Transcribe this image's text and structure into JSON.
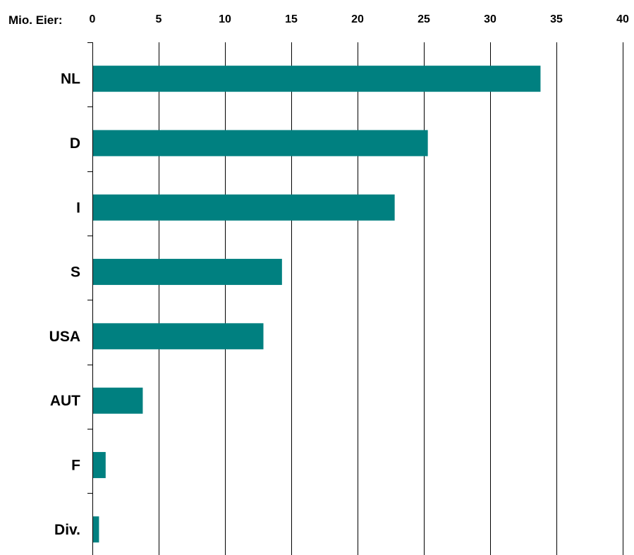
{
  "chart_data": {
    "type": "bar",
    "orientation": "horizontal",
    "unit_label": "Mio. Eier:",
    "categories": [
      "NL",
      "D",
      "I",
      "S",
      "USA",
      "AUT",
      "F",
      "Div."
    ],
    "values": [
      33.8,
      25.3,
      22.8,
      14.3,
      12.9,
      3.8,
      1.0,
      0.5
    ],
    "xlim": [
      0,
      40
    ],
    "xticks": [
      0,
      5,
      10,
      15,
      20,
      25,
      30,
      35,
      40
    ],
    "grid": "vertical",
    "bar_color": "#008080",
    "grid_color": "#000000"
  }
}
